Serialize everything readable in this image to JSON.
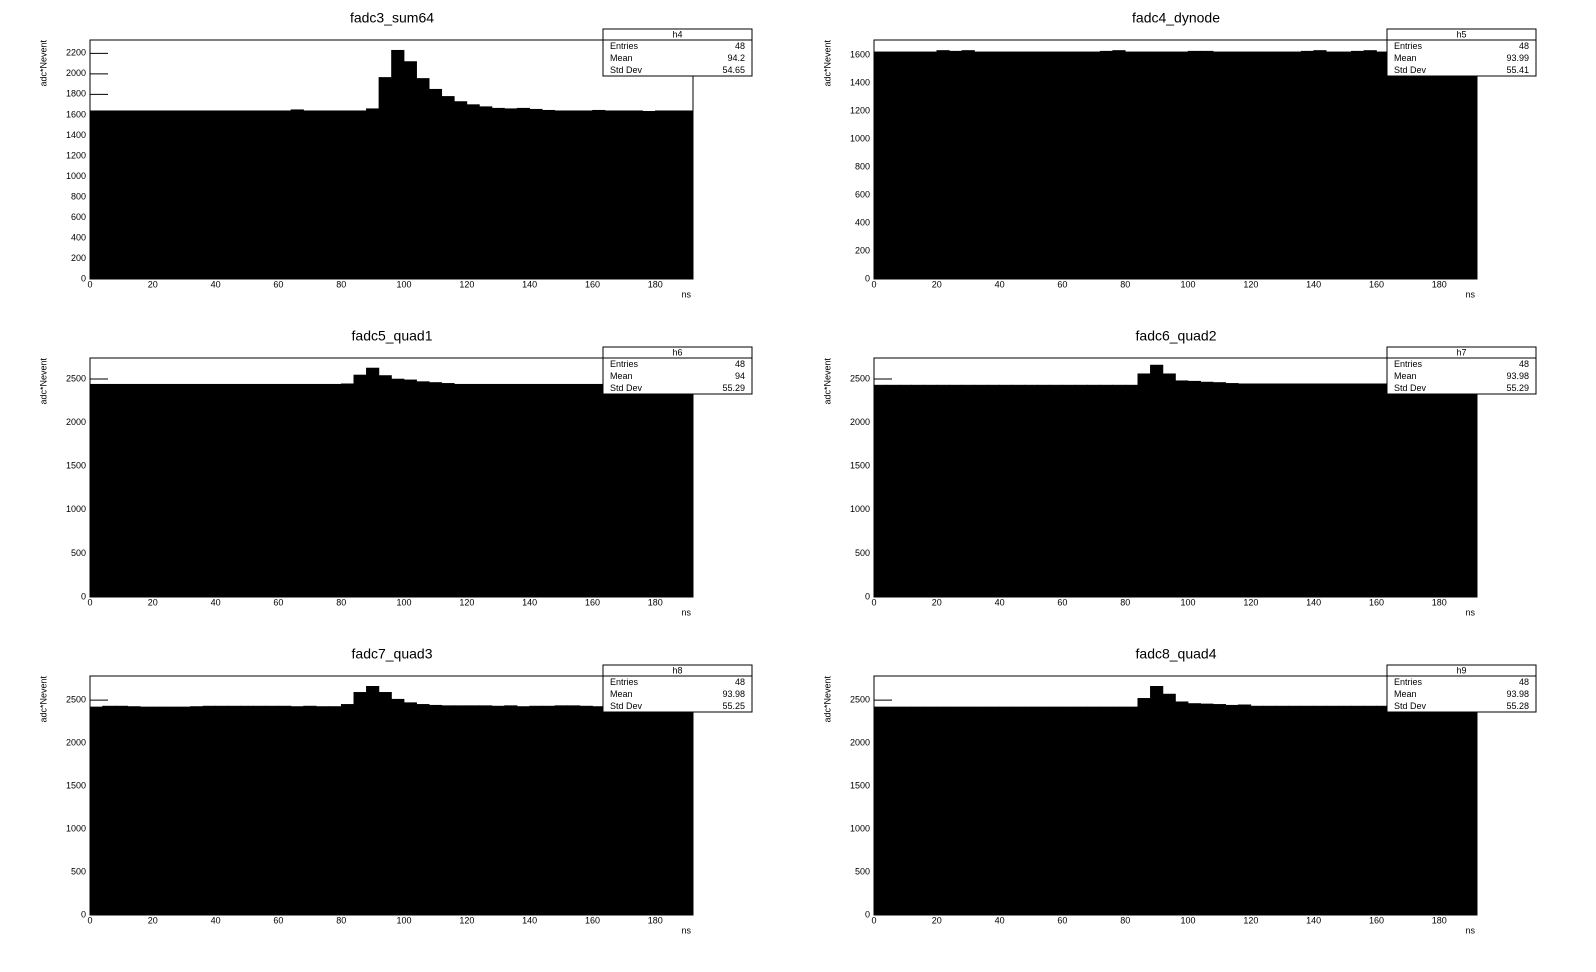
{
  "chart_data": [
    {
      "type": "histogram",
      "title": "fadc3_sum64",
      "x_label": "ns",
      "y_label": "adc*Nevent",
      "color": "#000000",
      "bins": [
        0,
        4,
        8,
        12,
        16,
        20,
        24,
        28,
        32,
        36,
        40,
        44,
        48,
        52,
        56,
        60,
        64,
        68,
        72,
        76,
        80,
        84,
        88,
        92,
        96,
        100,
        104,
        108,
        112,
        116,
        120,
        124,
        128,
        132,
        136,
        140,
        144,
        148,
        152,
        156,
        160,
        164,
        168,
        172,
        176,
        180,
        184,
        188,
        192
      ],
      "values": [
        1640,
        1640,
        1640,
        1640,
        1640,
        1640,
        1640,
        1640,
        1640,
        1640,
        1640,
        1640,
        1640,
        1640,
        1640,
        1640,
        1650,
        1640,
        1640,
        1640,
        1640,
        1640,
        1660,
        1965,
        2230,
        2120,
        1955,
        1850,
        1780,
        1730,
        1700,
        1680,
        1665,
        1660,
        1665,
        1655,
        1645,
        1640,
        1640,
        1640,
        1645,
        1640,
        1640,
        1640,
        1635,
        1640,
        1640,
        1640
      ],
      "xlim": [
        0,
        192
      ],
      "xticks": [
        0,
        20,
        40,
        60,
        80,
        100,
        120,
        140,
        160,
        180
      ],
      "ylim": [
        0,
        2330
      ],
      "yticks": [
        0,
        200,
        400,
        600,
        800,
        1000,
        1200,
        1400,
        1600,
        1800,
        2000,
        2200
      ],
      "stats": {
        "title": "h4",
        "rows": [
          {
            "label": "Entries",
            "value": 48
          },
          {
            "label": "Mean",
            "value": 94.2
          },
          {
            "label": "Std Dev",
            "value": 54.65
          }
        ]
      }
    },
    {
      "type": "histogram",
      "title": "fadc4_dynode",
      "x_label": "ns",
      "y_label": "adc*Nevent",
      "color": "#000000",
      "bins": [
        0,
        4,
        8,
        12,
        16,
        20,
        24,
        28,
        32,
        36,
        40,
        44,
        48,
        52,
        56,
        60,
        64,
        68,
        72,
        76,
        80,
        84,
        88,
        92,
        96,
        100,
        104,
        108,
        112,
        116,
        120,
        124,
        128,
        132,
        136,
        140,
        144,
        148,
        152,
        156,
        160,
        164,
        168,
        172,
        176,
        180,
        184,
        188,
        192
      ],
      "values": [
        1625,
        1625,
        1625,
        1625,
        1625,
        1635,
        1630,
        1635,
        1625,
        1625,
        1625,
        1625,
        1625,
        1625,
        1625,
        1625,
        1625,
        1625,
        1630,
        1635,
        1625,
        1625,
        1625,
        1625,
        1625,
        1630,
        1630,
        1625,
        1625,
        1625,
        1625,
        1625,
        1625,
        1625,
        1630,
        1635,
        1625,
        1625,
        1630,
        1635,
        1625,
        1625,
        1625,
        1625,
        1625,
        1625,
        1625,
        1625
      ],
      "xlim": [
        0,
        192
      ],
      "xticks": [
        0,
        20,
        40,
        60,
        80,
        100,
        120,
        140,
        160,
        180
      ],
      "ylim": [
        0,
        1710
      ],
      "yticks": [
        0,
        200,
        400,
        600,
        800,
        1000,
        1200,
        1400,
        1600
      ],
      "stats": {
        "title": "h5",
        "rows": [
          {
            "label": "Entries",
            "value": 48
          },
          {
            "label": "Mean",
            "value": 93.99
          },
          {
            "label": "Std Dev",
            "value": 55.41
          }
        ]
      }
    },
    {
      "type": "histogram",
      "title": "fadc5_quad1",
      "x_label": "ns",
      "y_label": "adc*Nevent",
      "color": "#000000",
      "bins": [
        0,
        4,
        8,
        12,
        16,
        20,
        24,
        28,
        32,
        36,
        40,
        44,
        48,
        52,
        56,
        60,
        64,
        68,
        72,
        76,
        80,
        84,
        88,
        92,
        96,
        100,
        104,
        108,
        112,
        116,
        120,
        124,
        128,
        132,
        136,
        140,
        144,
        148,
        152,
        156,
        160,
        164,
        168,
        172,
        176,
        180,
        184,
        188,
        192
      ],
      "values": [
        2440,
        2440,
        2440,
        2440,
        2440,
        2440,
        2440,
        2440,
        2440,
        2440,
        2440,
        2440,
        2440,
        2440,
        2440,
        2440,
        2440,
        2440,
        2440,
        2440,
        2445,
        2546,
        2626,
        2540,
        2500,
        2490,
        2470,
        2460,
        2450,
        2440,
        2440,
        2440,
        2440,
        2440,
        2440,
        2440,
        2440,
        2440,
        2440,
        2440,
        2440,
        2440,
        2440,
        2440,
        2440,
        2440,
        2440,
        2440
      ],
      "xlim": [
        0,
        192
      ],
      "xticks": [
        0,
        20,
        40,
        60,
        80,
        100,
        120,
        140,
        160,
        180
      ],
      "ylim": [
        0,
        2741
      ],
      "yticks": [
        0,
        500,
        1000,
        1500,
        2000,
        2500
      ],
      "stats": {
        "title": "h6",
        "rows": [
          {
            "label": "Entries",
            "value": 48
          },
          {
            "label": "Mean",
            "value": 94
          },
          {
            "label": "Std Dev",
            "value": 55.29
          }
        ]
      }
    },
    {
      "type": "histogram",
      "title": "fadc6_quad2",
      "x_label": "ns",
      "y_label": "adc*Nevent",
      "color": "#000000",
      "bins": [
        0,
        4,
        8,
        12,
        16,
        20,
        24,
        28,
        32,
        36,
        40,
        44,
        48,
        52,
        56,
        60,
        64,
        68,
        72,
        76,
        80,
        84,
        88,
        92,
        96,
        100,
        104,
        108,
        112,
        116,
        120,
        124,
        128,
        132,
        136,
        140,
        144,
        148,
        152,
        156,
        160,
        164,
        168,
        172,
        176,
        180,
        184,
        188,
        192
      ],
      "values": [
        2430,
        2430,
        2430,
        2430,
        2430,
        2430,
        2430,
        2430,
        2430,
        2430,
        2430,
        2430,
        2430,
        2430,
        2430,
        2430,
        2430,
        2430,
        2430,
        2430,
        2430,
        2560,
        2660,
        2560,
        2480,
        2475,
        2465,
        2460,
        2450,
        2445,
        2445,
        2445,
        2445,
        2445,
        2445,
        2445,
        2445,
        2445,
        2445,
        2445,
        2445,
        2445,
        2445,
        2445,
        2445,
        2445,
        2445,
        2445
      ],
      "xlim": [
        0,
        192
      ],
      "xticks": [
        0,
        20,
        40,
        60,
        80,
        100,
        120,
        140,
        160,
        180
      ],
      "ylim": [
        0,
        2741
      ],
      "yticks": [
        0,
        500,
        1000,
        1500,
        2000,
        2500
      ],
      "stats": {
        "title": "h7",
        "rows": [
          {
            "label": "Entries",
            "value": 48
          },
          {
            "label": "Mean",
            "value": 93.98
          },
          {
            "label": "Std Dev",
            "value": 55.29
          }
        ]
      }
    },
    {
      "type": "histogram",
      "title": "fadc7_quad3",
      "x_label": "ns",
      "y_label": "adc*Nevent",
      "color": "#000000",
      "bins": [
        0,
        4,
        8,
        12,
        16,
        20,
        24,
        28,
        32,
        36,
        40,
        44,
        48,
        52,
        56,
        60,
        64,
        68,
        72,
        76,
        80,
        84,
        88,
        92,
        96,
        100,
        104,
        108,
        112,
        116,
        120,
        124,
        128,
        132,
        136,
        140,
        144,
        148,
        152,
        156,
        160,
        164,
        168,
        172,
        176,
        180,
        184,
        188,
        192
      ],
      "values": [
        2420,
        2430,
        2430,
        2425,
        2420,
        2420,
        2420,
        2420,
        2425,
        2430,
        2430,
        2430,
        2430,
        2430,
        2430,
        2430,
        2425,
        2430,
        2425,
        2425,
        2450,
        2590,
        2660,
        2590,
        2510,
        2470,
        2450,
        2440,
        2435,
        2435,
        2435,
        2435,
        2430,
        2435,
        2425,
        2430,
        2430,
        2435,
        2435,
        2430,
        2425,
        2430,
        2425,
        2420,
        2425,
        2430,
        2425,
        2425
      ],
      "xlim": [
        0,
        192
      ],
      "xticks": [
        0,
        20,
        40,
        60,
        80,
        100,
        120,
        140,
        160,
        180
      ],
      "ylim": [
        0,
        2780
      ],
      "yticks": [
        0,
        500,
        1000,
        1500,
        2000,
        2500
      ],
      "stats": {
        "title": "h8",
        "rows": [
          {
            "label": "Entries",
            "value": 48
          },
          {
            "label": "Mean",
            "value": 93.98
          },
          {
            "label": "Std Dev",
            "value": 55.25
          }
        ]
      }
    },
    {
      "type": "histogram",
      "title": "fadc8_quad4",
      "x_label": "ns",
      "y_label": "adc*Nevent",
      "color": "#000000",
      "bins": [
        0,
        4,
        8,
        12,
        16,
        20,
        24,
        28,
        32,
        36,
        40,
        44,
        48,
        52,
        56,
        60,
        64,
        68,
        72,
        76,
        80,
        84,
        88,
        92,
        96,
        100,
        104,
        108,
        112,
        116,
        120,
        124,
        128,
        132,
        136,
        140,
        144,
        148,
        152,
        156,
        160,
        164,
        168,
        172,
        176,
        180,
        184,
        188,
        192
      ],
      "values": [
        2420,
        2420,
        2420,
        2420,
        2420,
        2420,
        2420,
        2420,
        2420,
        2420,
        2420,
        2420,
        2420,
        2420,
        2420,
        2420,
        2420,
        2420,
        2420,
        2420,
        2420,
        2520,
        2660,
        2570,
        2480,
        2460,
        2455,
        2450,
        2440,
        2445,
        2430,
        2430,
        2430,
        2430,
        2430,
        2430,
        2430,
        2430,
        2430,
        2430,
        2430,
        2430,
        2430,
        2430,
        2430,
        2430,
        2430,
        2430
      ],
      "xlim": [
        0,
        192
      ],
      "xticks": [
        0,
        20,
        40,
        60,
        80,
        100,
        120,
        140,
        160,
        180
      ],
      "ylim": [
        0,
        2780
      ],
      "yticks": [
        0,
        500,
        1000,
        1500,
        2000,
        2500
      ],
      "stats": {
        "title": "h9",
        "rows": [
          {
            "label": "Entries",
            "value": 48
          },
          {
            "label": "Mean",
            "value": 93.98
          },
          {
            "label": "Std Dev",
            "value": 55.28
          }
        ]
      }
    }
  ]
}
